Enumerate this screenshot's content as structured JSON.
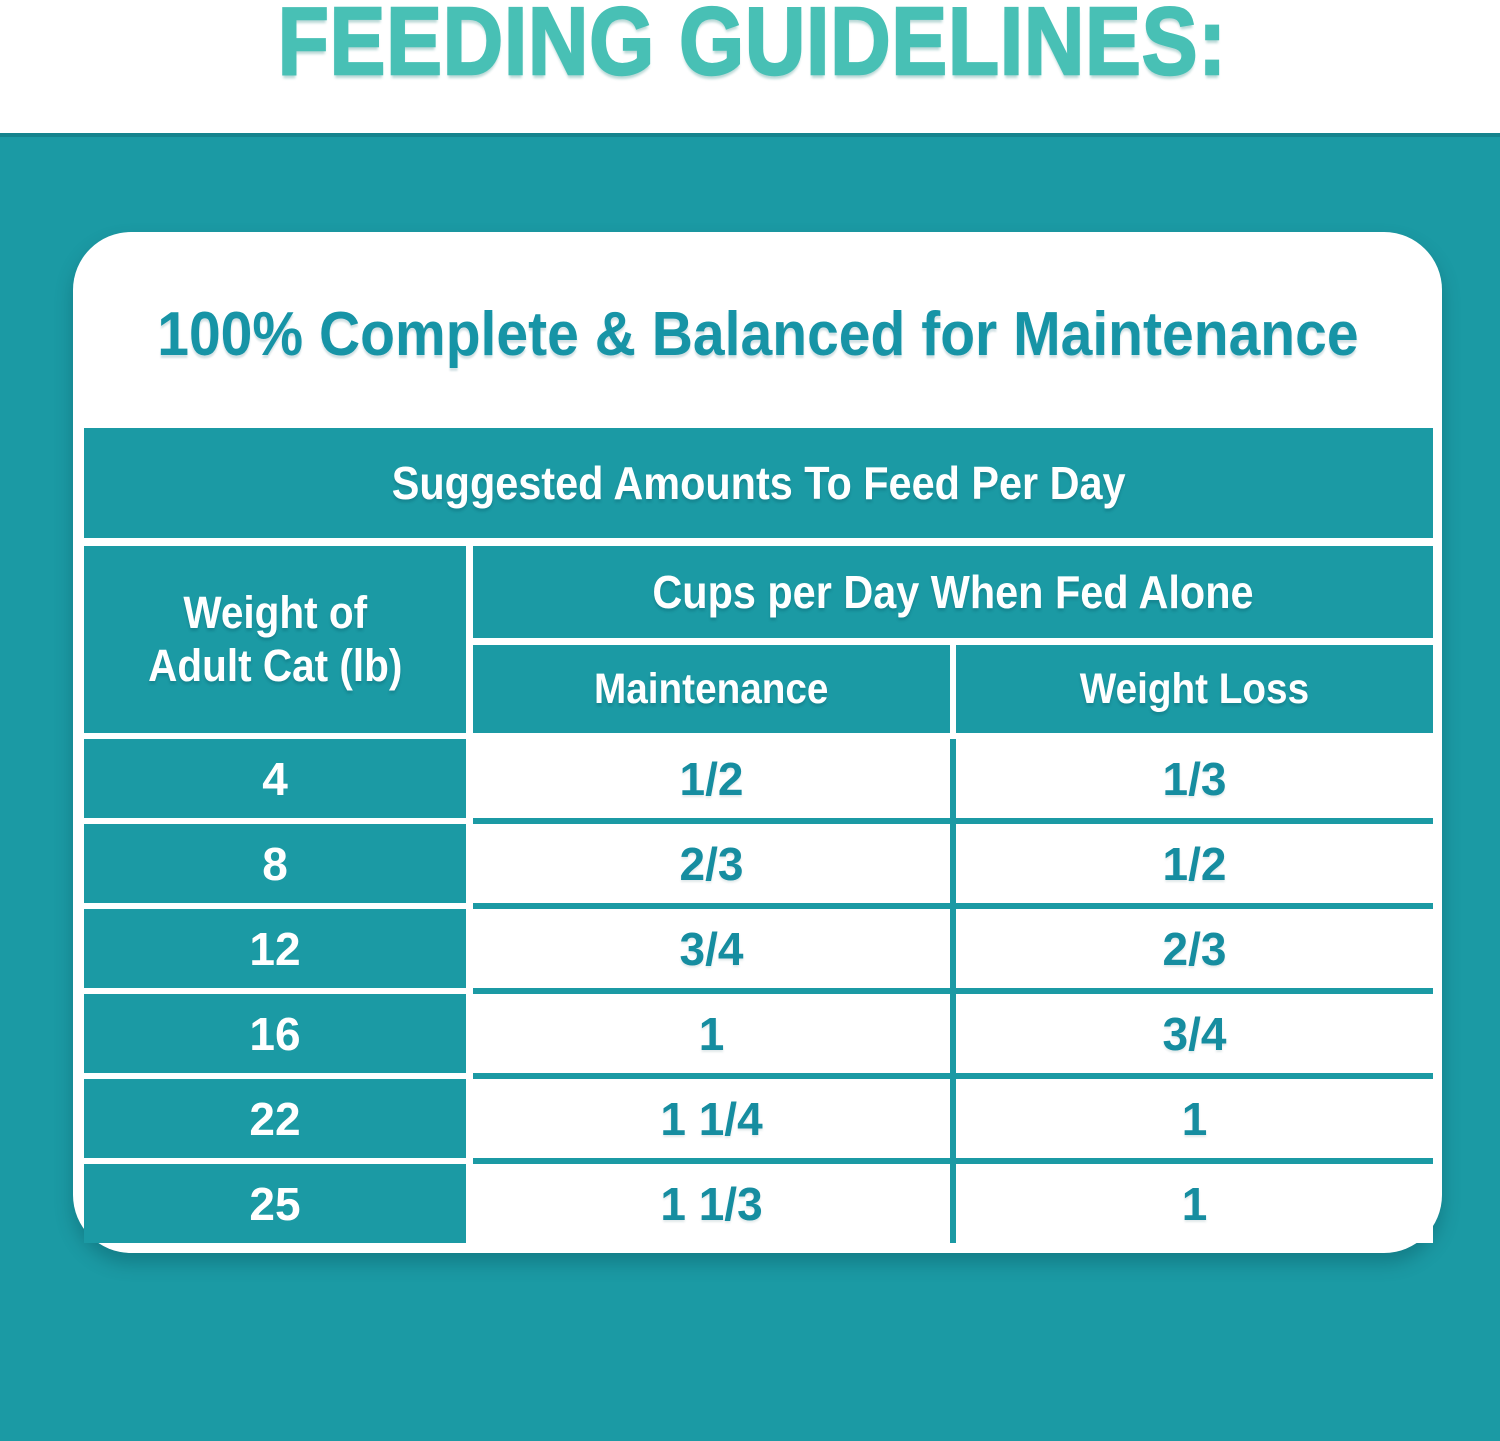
{
  "page": {
    "heading": "FEEDING GUIDELINES:",
    "card_title": "100% Complete & Balanced for Maintenance"
  },
  "colors": {
    "page_teal": "#1b9aa4",
    "heading_turquoise": "#48c0b5",
    "title_teal": "#1794a6",
    "value_teal": "#168da0",
    "cell_text": "#ffffff",
    "card_bg": "#ffffff"
  },
  "table": {
    "title": "Suggested Amounts To Feed Per Day",
    "row_header_line1": "Weight of",
    "row_header_line2": "Adult Cat (lb)",
    "col_group_header": "Cups per Day When Fed Alone",
    "col1_header": "Maintenance",
    "col2_header": "Weight Loss",
    "rows": [
      {
        "weight": "4",
        "maintenance": "1/2",
        "weight_loss": "1/3"
      },
      {
        "weight": "8",
        "maintenance": "2/3",
        "weight_loss": "1/2"
      },
      {
        "weight": "12",
        "maintenance": "3/4",
        "weight_loss": "2/3"
      },
      {
        "weight": "16",
        "maintenance": "1",
        "weight_loss": "3/4"
      },
      {
        "weight": "22",
        "maintenance": "1 1/4",
        "weight_loss": "1"
      },
      {
        "weight": "25",
        "maintenance": "1 1/3",
        "weight_loss": "1"
      }
    ]
  }
}
